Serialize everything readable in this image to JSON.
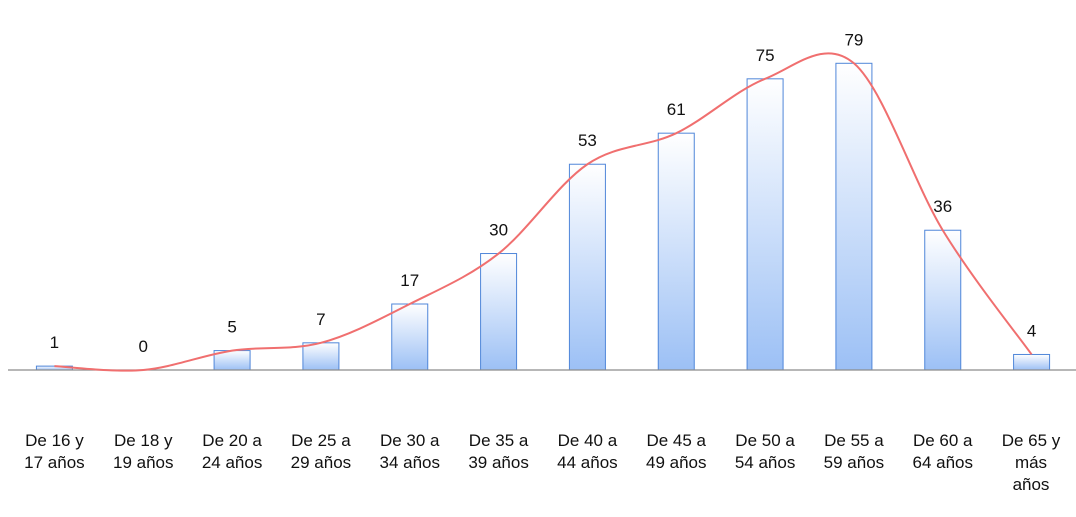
{
  "chart_data": {
    "type": "bar",
    "categories": [
      "De 16 y 17 años",
      "De 18 y 19 años",
      "De 20 a 24 años",
      "De 25 a 29 años",
      "De 30 a 34 años",
      "De 35 a 39 años",
      "De 40 a 44 años",
      "De 45 a 49 años",
      "De 50 a 54 años",
      "De 55 a 59 años",
      "De 60 a 64 años",
      "De 65 y más años"
    ],
    "category_lines": [
      [
        "De 16 y",
        "17 años"
      ],
      [
        "De 18 y",
        "19 años"
      ],
      [
        "De 20 a",
        "24 años"
      ],
      [
        "De 25 a",
        "29 años"
      ],
      [
        "De 30 a",
        "34 años"
      ],
      [
        "De 35 a",
        "39 años"
      ],
      [
        "De 40 a",
        "44 años"
      ],
      [
        "De 45 a",
        "49 años"
      ],
      [
        "De 50 a",
        "54 años"
      ],
      [
        "De 55 a",
        "59 años"
      ],
      [
        "De 60 a",
        "64 años"
      ],
      [
        "De 65 y",
        "más",
        "años"
      ]
    ],
    "values": [
      1,
      0,
      5,
      7,
      17,
      30,
      53,
      61,
      75,
      79,
      36,
      4
    ],
    "ylim": [
      0,
      85
    ],
    "grid": false,
    "legend": "none",
    "trendline": "smooth",
    "colors": {
      "bar_top": "#ffffff",
      "bar_bottom": "#9cc0f5",
      "bar_stroke": "#4f86d9",
      "trend": "#f06f6f",
      "axis": "#8c8c8c",
      "text": "#111111"
    }
  }
}
